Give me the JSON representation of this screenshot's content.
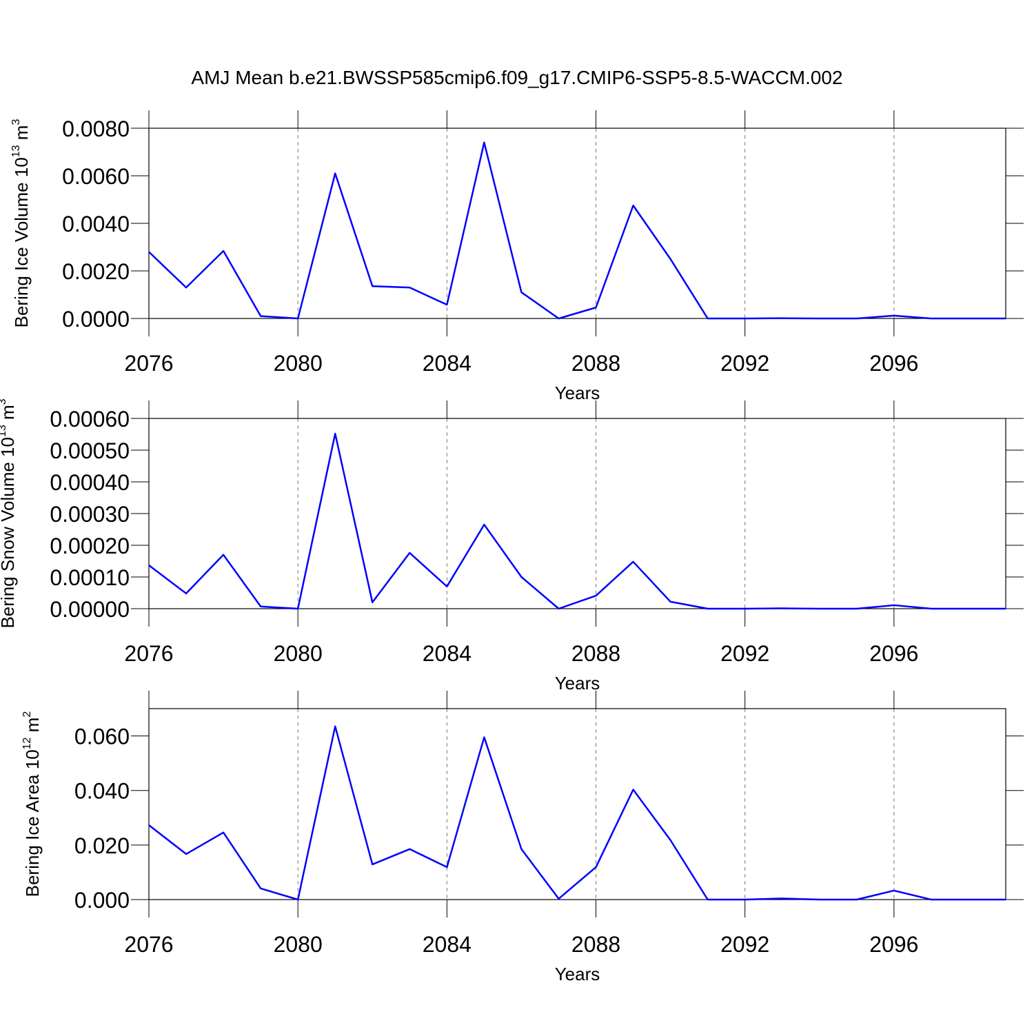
{
  "chart_data": [
    {
      "type": "line",
      "title": "AMJ Mean b.e21.BWSSP585cmip6.f09_g17.CMIP6-SSP5-8.5-WACCM.002",
      "ylabel": [
        "Bering Ice Volume 10",
        "13",
        " m",
        "3"
      ],
      "xlabel": "Years",
      "x": [
        2076,
        2077,
        2078,
        2079,
        2080,
        2081,
        2082,
        2083,
        2084,
        2085,
        2086,
        2087,
        2088,
        2089,
        2090,
        2091,
        2092,
        2093,
        2094,
        2095,
        2096,
        2097,
        2098,
        2099
      ],
      "series": [
        {
          "color": "#0000ff",
          "values": [
            0.0028,
            0.0013,
            0.00284,
            0.0001,
            0,
            0.0061,
            0.00136,
            0.0013,
            0.00058,
            0.0074,
            0.0011,
            0,
            0.00046,
            0.00475,
            0.0025,
            0,
            0,
            1e-05,
            0,
            0,
            0.00012,
            0,
            0,
            0
          ]
        }
      ],
      "xlim": [
        2076,
        2099
      ],
      "xticks": [
        2076,
        2080,
        2084,
        2088,
        2092,
        2096
      ],
      "ylim": [
        0,
        0.008
      ],
      "yticks": [
        {
          "value": 0,
          "label": "0.0000"
        },
        {
          "value": 0.002,
          "label": "0.0020"
        },
        {
          "value": 0.004,
          "label": "0.0040"
        },
        {
          "value": 0.006,
          "label": "0.0060"
        },
        {
          "value": 0.008,
          "label": "0.0080"
        }
      ],
      "grid": true
    },
    {
      "type": "line",
      "ylabel": [
        "Bering Snow Volume 10",
        "13",
        " m",
        "3"
      ],
      "xlabel": "Years",
      "x": [
        2076,
        2077,
        2078,
        2079,
        2080,
        2081,
        2082,
        2083,
        2084,
        2085,
        2086,
        2087,
        2088,
        2089,
        2090,
        2091,
        2092,
        2093,
        2094,
        2095,
        2096,
        2097,
        2098,
        2099
      ],
      "series": [
        {
          "color": "#0000ff",
          "values": [
            0.000137,
            4.8e-05,
            0.00017,
            7e-06,
            0,
            0.000552,
            2e-05,
            0.000176,
            7e-05,
            0.000265,
            0.0001,
            0,
            4.1e-05,
            0.000148,
            2.2e-05,
            0,
            0,
            1e-06,
            0,
            0,
            1.1e-05,
            0,
            0,
            0
          ]
        }
      ],
      "xlim": [
        2076,
        2099
      ],
      "xticks": [
        2076,
        2080,
        2084,
        2088,
        2092,
        2096
      ],
      "ylim": [
        0,
        0.0006
      ],
      "yticks": [
        {
          "value": 0,
          "label": "0.00000"
        },
        {
          "value": 0.0001,
          "label": "0.00010"
        },
        {
          "value": 0.0002,
          "label": "0.00020"
        },
        {
          "value": 0.0003,
          "label": "0.00030"
        },
        {
          "value": 0.0004,
          "label": "0.00040"
        },
        {
          "value": 0.0005,
          "label": "0.00050"
        },
        {
          "value": 0.0006,
          "label": "0.00060"
        }
      ],
      "grid": true
    },
    {
      "type": "line",
      "ylabel": [
        "Bering Ice Area 10",
        "12",
        " m",
        "2"
      ],
      "xlabel": "Years",
      "x": [
        2076,
        2077,
        2078,
        2079,
        2080,
        2081,
        2082,
        2083,
        2084,
        2085,
        2086,
        2087,
        2088,
        2089,
        2090,
        2091,
        2092,
        2093,
        2094,
        2095,
        2096,
        2097,
        2098,
        2099
      ],
      "series": [
        {
          "color": "#0000ff",
          "values": [
            0.0273,
            0.0167,
            0.0246,
            0.0041,
            0,
            0.0635,
            0.0129,
            0.0185,
            0.0119,
            0.0595,
            0.0185,
            0.0003,
            0.0119,
            0.0403,
            0.0218,
            0,
            0,
            0.0004,
            0,
            0,
            0.0033,
            0,
            0,
            0
          ]
        }
      ],
      "xlim": [
        2076,
        2099
      ],
      "xticks": [
        2076,
        2080,
        2084,
        2088,
        2092,
        2096
      ],
      "ylim": [
        0,
        0.07
      ],
      "yticks": [
        {
          "value": 0,
          "label": "0.000"
        },
        {
          "value": 0.02,
          "label": "0.020"
        },
        {
          "value": 0.04,
          "label": "0.040"
        },
        {
          "value": 0.06,
          "label": "0.060"
        }
      ],
      "grid": true
    }
  ]
}
